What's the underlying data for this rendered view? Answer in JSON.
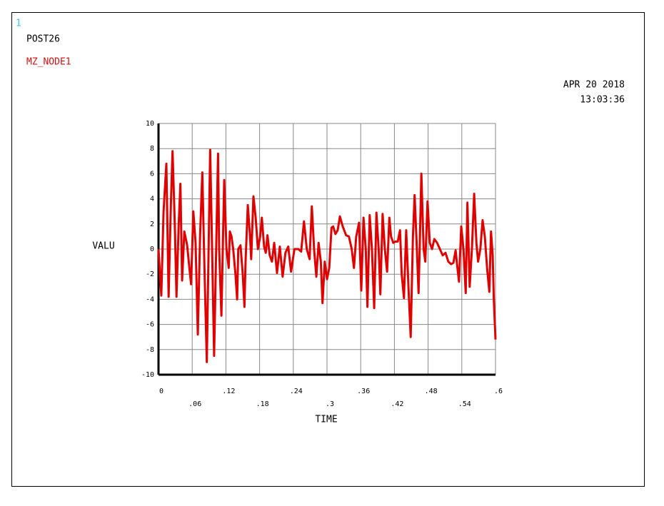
{
  "chart_data": {
    "type": "line",
    "window": "1",
    "program": "POST26",
    "date": "APR 20 2018",
    "time": "13:03:36",
    "y_label": "VALU",
    "x_label": "TIME",
    "grid": true,
    "xlim": [
      0,
      0.6
    ],
    "ylim": [
      -10,
      10
    ],
    "xticks": [
      0,
      {
        "value": 0.06,
        "label": ".06"
      },
      {
        "value": 0.12,
        "label": ".12"
      },
      {
        "value": 0.18,
        "label": ".18"
      },
      {
        "value": 0.24,
        "label": ".24"
      },
      {
        "value": 0.3,
        "label": ".3"
      },
      {
        "value": 0.36,
        "label": ".36"
      },
      {
        "value": 0.42,
        "label": ".42"
      },
      {
        "value": 0.48,
        "label": ".48"
      },
      {
        "value": 0.54,
        "label": ".54"
      },
      {
        "value": 0.6,
        "label": ".6"
      }
    ],
    "yticks": [
      -10,
      -8,
      -6,
      -4,
      -2,
      0,
      2,
      4,
      6,
      8,
      10
    ],
    "x": [
      0,
      0.005,
      0.009,
      0.014,
      0.018,
      0.022,
      0.025,
      0.029,
      0.032,
      0.036,
      0.039,
      0.042,
      0.046,
      0.051,
      0.055,
      0.058,
      0.062,
      0.066,
      0.07,
      0.074,
      0.078,
      0.081,
      0.086,
      0.092,
      0.095,
      0.099,
      0.106,
      0.108,
      0.112,
      0.117,
      0.121,
      0.125,
      0.127,
      0.13,
      0.133,
      0.137,
      0.14,
      0.142,
      0.146,
      0.15,
      0.153,
      0.155,
      0.159,
      0.163,
      0.165,
      0.169,
      0.173,
      0.177,
      0.181,
      0.184,
      0.188,
      0.191,
      0.194,
      0.198,
      0.202,
      0.206,
      0.211,
      0.216,
      0.221,
      0.226,
      0.231,
      0.236,
      0.242,
      0.245,
      0.249,
      0.254,
      0.259,
      0.264,
      0.269,
      0.273,
      0.277,
      0.281,
      0.285,
      0.289,
      0.292,
      0.296,
      0.3,
      0.304,
      0.308,
      0.311,
      0.315,
      0.319,
      0.323,
      0.328,
      0.334,
      0.339,
      0.344,
      0.348,
      0.352,
      0.357,
      0.361,
      0.365,
      0.369,
      0.372,
      0.376,
      0.38,
      0.384,
      0.388,
      0.392,
      0.395,
      0.399,
      0.403,
      0.407,
      0.411,
      0.414,
      0.418,
      0.422,
      0.426,
      0.43,
      0.433,
      0.437,
      0.441,
      0.445,
      0.449,
      0.453,
      0.456,
      0.46,
      0.463,
      0.465,
      0.468,
      0.472,
      0.475,
      0.479,
      0.483,
      0.487,
      0.491,
      0.496,
      0.501,
      0.506,
      0.511,
      0.516,
      0.521,
      0.525,
      0.529,
      0.531,
      0.535,
      0.539,
      0.543,
      0.547,
      0.55,
      0.554,
      0.558,
      0.562,
      0.566,
      0.569,
      0.573,
      0.577,
      0.581,
      0.585,
      0.589,
      0.592,
      0.595,
      0.597,
      0.6
    ],
    "series": [
      {
        "name": "MZ_NODE1",
        "color": "#e00000",
        "values": [
          0,
          -3.7,
          3,
          6.8,
          -3.8,
          3.5,
          7.8,
          2,
          -3.8,
          2,
          5.2,
          -2.5,
          1.4,
          0.3,
          -1.5,
          -2.8,
          3,
          0.5,
          -6.8,
          1,
          6.1,
          0,
          -9,
          7.9,
          1,
          -8.5,
          7.6,
          0,
          -5.3,
          5.5,
          0,
          -1.5,
          1.4,
          1,
          0,
          -2,
          -4,
          0,
          0.3,
          -2,
          -4.6,
          -1,
          3.5,
          1,
          -0.8,
          4.2,
          2.5,
          0,
          1,
          2.5,
          0.2,
          -0.3,
          1.1,
          -0.5,
          -1,
          0.5,
          -1.9,
          0.2,
          -2.2,
          -0.3,
          0.2,
          -1.8,
          0,
          0,
          0,
          -0.2,
          2.2,
          0,
          -0.8,
          3.4,
          0,
          -2.2,
          0.5,
          -1,
          -4.3,
          -1,
          -2.4,
          -1.5,
          1.7,
          1.8,
          1.2,
          1.5,
          2.6,
          1.8,
          1.1,
          1,
          0,
          -1.5,
          1,
          2.1,
          -3.3,
          2.5,
          0,
          -4.6,
          2.7,
          0,
          -4.7,
          2.9,
          0,
          -3.6,
          2.8,
          0,
          -1.8,
          2.5,
          1,
          0.5,
          0.6,
          0.6,
          1.5,
          -2,
          -3.9,
          1.5,
          -3,
          -7,
          1,
          4.3,
          0,
          -3.5,
          0,
          6,
          0,
          -1,
          3.8,
          0.5,
          0,
          0.8,
          0.5,
          0,
          -0.5,
          -0.3,
          -1,
          -1.2,
          -1.1,
          -0.1,
          -1,
          -2.6,
          1.8,
          0,
          -3.5,
          3.7,
          -3,
          0,
          4.4,
          0.5,
          -1,
          0,
          2.3,
          1,
          -1.5,
          -3.4,
          1.4,
          -0.5,
          -4,
          -7.2
        ]
      }
    ]
  }
}
